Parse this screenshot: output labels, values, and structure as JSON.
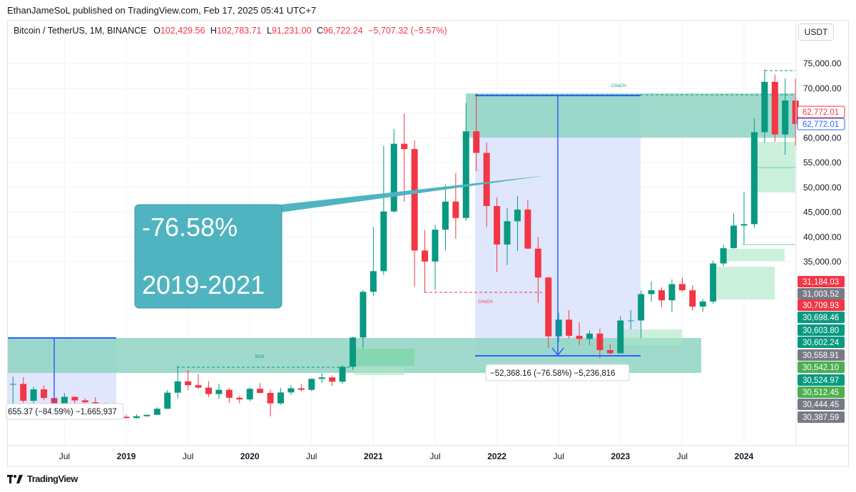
{
  "publisher": "EthanJameSoL published on TradingView.com, Feb 17, 2025 05:41 UTC+7",
  "legend": {
    "symbol": "Bitcoin / TetherUS, 1M, BINANCE",
    "open_label": "O",
    "open": "102,429.56",
    "high_label": "H",
    "high": "102,783.71",
    "low_label": "L",
    "low": "91,231.00",
    "close_label": "C",
    "close": "96,722.24",
    "change": "−5,707.32 (−5.57%)"
  },
  "currency": "USDT",
  "footer": {
    "brand": "TradingView",
    "logo_icon": "tradingview-logo-icon"
  },
  "colors": {
    "up": "#089981",
    "down": "#f23645",
    "zone": "#8fd3c3",
    "box": "#4fb4bf",
    "measure": "#dbe2fb",
    "line": "#2962ff"
  },
  "chart_data": {
    "type": "candlestick",
    "symbol": "Bitcoin / TetherUS",
    "interval": "1M",
    "ylim": [
      0,
      75000
    ],
    "y_ticks": [
      "75,000.00",
      "70,000.00",
      "65,000.00",
      "60,000.00",
      "55,000.00",
      "50,000.00",
      "45,000.00",
      "40,000.00",
      "35,000.00"
    ],
    "x_ticks": [
      "Jul",
      "2019",
      "Jul",
      "2020",
      "Jul",
      "2021",
      "Jul",
      "2022",
      "Jul",
      "2023",
      "Jul",
      "2024"
    ],
    "candles": [
      {
        "t": "2018-02",
        "o": 10290,
        "h": 11790,
        "l": 6000,
        "c": 10330
      },
      {
        "t": "2018-03",
        "o": 10330,
        "h": 11670,
        "l": 6530,
        "c": 6930
      },
      {
        "t": "2018-04",
        "o": 6930,
        "h": 9770,
        "l": 6430,
        "c": 9240
      },
      {
        "t": "2018-05",
        "o": 9240,
        "h": 10020,
        "l": 7030,
        "c": 7490
      },
      {
        "t": "2018-06",
        "o": 7490,
        "h": 7760,
        "l": 5750,
        "c": 6390
      },
      {
        "t": "2018-07",
        "o": 6390,
        "h": 8490,
        "l": 6070,
        "c": 7730
      },
      {
        "t": "2018-08",
        "o": 7730,
        "h": 7740,
        "l": 5880,
        "c": 7020
      },
      {
        "t": "2018-09",
        "o": 7020,
        "h": 7410,
        "l": 6100,
        "c": 6630
      },
      {
        "t": "2018-10",
        "o": 6630,
        "h": 7680,
        "l": 6200,
        "c": 6370
      },
      {
        "t": "2018-11",
        "o": 6370,
        "h": 6560,
        "l": 3650,
        "c": 4040
      },
      {
        "t": "2018-12",
        "o": 4040,
        "h": 4310,
        "l": 3160,
        "c": 3740
      },
      {
        "t": "2019-01",
        "o": 3700,
        "h": 4140,
        "l": 3350,
        "c": 3440
      },
      {
        "t": "2019-02",
        "o": 3440,
        "h": 4200,
        "l": 3370,
        "c": 3810
      },
      {
        "t": "2019-03",
        "o": 3810,
        "h": 4140,
        "l": 3680,
        "c": 4100
      },
      {
        "t": "2019-04",
        "o": 4100,
        "h": 5600,
        "l": 4050,
        "c": 5320
      },
      {
        "t": "2019-05",
        "o": 5320,
        "h": 9100,
        "l": 5260,
        "c": 8570
      },
      {
        "t": "2019-06",
        "o": 8570,
        "h": 13970,
        "l": 7450,
        "c": 10850
      },
      {
        "t": "2019-07",
        "o": 10850,
        "h": 13190,
        "l": 9070,
        "c": 10080
      },
      {
        "t": "2019-08",
        "o": 10080,
        "h": 12330,
        "l": 9320,
        "c": 9590
      },
      {
        "t": "2019-09",
        "o": 9590,
        "h": 10900,
        "l": 7710,
        "c": 8290
      },
      {
        "t": "2019-10",
        "o": 8290,
        "h": 10370,
        "l": 7300,
        "c": 9150
      },
      {
        "t": "2019-11",
        "o": 9150,
        "h": 9510,
        "l": 6520,
        "c": 7540
      },
      {
        "t": "2019-12",
        "o": 7540,
        "h": 7870,
        "l": 6440,
        "c": 7200
      },
      {
        "t": "2020-01",
        "o": 7200,
        "h": 9580,
        "l": 6850,
        "c": 9350
      },
      {
        "t": "2020-02",
        "o": 9350,
        "h": 10500,
        "l": 8450,
        "c": 8520
      },
      {
        "t": "2020-03",
        "o": 8520,
        "h": 9190,
        "l": 3780,
        "c": 6410
      },
      {
        "t": "2020-04",
        "o": 6410,
        "h": 9470,
        "l": 6150,
        "c": 8620
      },
      {
        "t": "2020-05",
        "o": 8620,
        "h": 10070,
        "l": 8100,
        "c": 9450
      },
      {
        "t": "2020-06",
        "o": 9450,
        "h": 10380,
        "l": 8830,
        "c": 9140
      },
      {
        "t": "2020-07",
        "o": 9140,
        "h": 11440,
        "l": 8890,
        "c": 11350
      },
      {
        "t": "2020-08",
        "o": 11350,
        "h": 12470,
        "l": 10520,
        "c": 11650
      },
      {
        "t": "2020-09",
        "o": 11650,
        "h": 12070,
        "l": 9880,
        "c": 10780
      },
      {
        "t": "2020-10",
        "o": 10780,
        "h": 14100,
        "l": 10370,
        "c": 13790
      },
      {
        "t": "2020-11",
        "o": 13790,
        "h": 19860,
        "l": 13200,
        "c": 19700
      },
      {
        "t": "2020-12",
        "o": 19700,
        "h": 29300,
        "l": 17570,
        "c": 28920
      },
      {
        "t": "2021-01",
        "o": 28920,
        "h": 41950,
        "l": 28130,
        "c": 33090
      },
      {
        "t": "2021-02",
        "o": 33090,
        "h": 58350,
        "l": 32300,
        "c": 45140
      },
      {
        "t": "2021-03",
        "o": 45140,
        "h": 61780,
        "l": 44950,
        "c": 58790
      },
      {
        "t": "2021-04",
        "o": 58790,
        "h": 64850,
        "l": 47040,
        "c": 57720
      },
      {
        "t": "2021-05",
        "o": 57720,
        "h": 59500,
        "l": 30000,
        "c": 37250
      },
      {
        "t": "2021-06",
        "o": 37250,
        "h": 41330,
        "l": 28800,
        "c": 35040
      },
      {
        "t": "2021-07",
        "o": 35040,
        "h": 42450,
        "l": 29280,
        "c": 41460
      },
      {
        "t": "2021-08",
        "o": 41460,
        "h": 50500,
        "l": 37330,
        "c": 47130
      },
      {
        "t": "2021-09",
        "o": 47130,
        "h": 52920,
        "l": 39600,
        "c": 43820
      },
      {
        "t": "2021-10",
        "o": 43820,
        "h": 66999,
        "l": 43280,
        "c": 61300
      },
      {
        "t": "2021-11",
        "o": 61300,
        "h": 69000,
        "l": 53250,
        "c": 56950
      },
      {
        "t": "2021-12",
        "o": 56950,
        "h": 59050,
        "l": 42000,
        "c": 46220
      },
      {
        "t": "2022-01",
        "o": 46220,
        "h": 47990,
        "l": 32920,
        "c": 38470
      },
      {
        "t": "2022-02",
        "o": 38470,
        "h": 45820,
        "l": 34320,
        "c": 43160
      },
      {
        "t": "2022-03",
        "o": 43160,
        "h": 48190,
        "l": 37150,
        "c": 45510
      },
      {
        "t": "2022-04",
        "o": 45510,
        "h": 47440,
        "l": 37580,
        "c": 37630
      },
      {
        "t": "2022-05",
        "o": 37630,
        "h": 40020,
        "l": 26700,
        "c": 31800
      },
      {
        "t": "2022-06",
        "o": 31800,
        "h": 31980,
        "l": 17620,
        "c": 19940
      },
      {
        "t": "2022-07",
        "o": 19940,
        "h": 24670,
        "l": 18780,
        "c": 23300
      },
      {
        "t": "2022-08",
        "o": 23300,
        "h": 25210,
        "l": 19520,
        "c": 20050
      },
      {
        "t": "2022-09",
        "o": 20050,
        "h": 22800,
        "l": 18130,
        "c": 19420
      },
      {
        "t": "2022-10",
        "o": 19420,
        "h": 21090,
        "l": 18190,
        "c": 20490
      },
      {
        "t": "2022-11",
        "o": 20490,
        "h": 21480,
        "l": 15480,
        "c": 17160
      },
      {
        "t": "2022-12",
        "o": 17160,
        "h": 18390,
        "l": 16260,
        "c": 16540
      },
      {
        "t": "2023-01",
        "o": 16540,
        "h": 23960,
        "l": 16500,
        "c": 23130
      },
      {
        "t": "2023-02",
        "o": 23130,
        "h": 25250,
        "l": 21350,
        "c": 23140
      },
      {
        "t": "2023-03",
        "o": 23140,
        "h": 29180,
        "l": 19550,
        "c": 28460
      },
      {
        "t": "2023-04",
        "o": 28460,
        "h": 31000,
        "l": 26940,
        "c": 29230
      },
      {
        "t": "2023-05",
        "o": 29230,
        "h": 29820,
        "l": 25810,
        "c": 27210
      },
      {
        "t": "2023-06",
        "o": 27210,
        "h": 31430,
        "l": 24800,
        "c": 30470
      },
      {
        "t": "2023-07",
        "o": 30470,
        "h": 31800,
        "l": 28860,
        "c": 29230
      },
      {
        "t": "2023-08",
        "o": 29230,
        "h": 30250,
        "l": 25170,
        "c": 25940
      },
      {
        "t": "2023-09",
        "o": 25940,
        "h": 27480,
        "l": 24900,
        "c": 26960
      },
      {
        "t": "2023-10",
        "o": 26960,
        "h": 35200,
        "l": 26540,
        "c": 34640
      },
      {
        "t": "2023-11",
        "o": 34640,
        "h": 38430,
        "l": 34090,
        "c": 37720
      },
      {
        "t": "2023-12",
        "o": 37720,
        "h": 44730,
        "l": 37630,
        "c": 42280
      },
      {
        "t": "2024-01",
        "o": 42280,
        "h": 48970,
        "l": 38550,
        "c": 42580
      },
      {
        "t": "2024-02",
        "o": 42580,
        "h": 63900,
        "l": 41880,
        "c": 61130
      },
      {
        "t": "2024-03",
        "o": 61130,
        "h": 73780,
        "l": 59000,
        "c": 71290
      },
      {
        "t": "2024-04",
        "o": 71290,
        "h": 72800,
        "l": 59190,
        "c": 60670
      },
      {
        "t": "2024-05",
        "o": 60670,
        "h": 71980,
        "l": 56550,
        "c": 67520
      },
      {
        "t": "2024-06",
        "o": 67520,
        "h": 71960,
        "l": 58400,
        "c": 62770
      }
    ],
    "price_labels": [
      {
        "text": "62,772.01",
        "style": "red-outline"
      },
      {
        "text": "62,772.01",
        "style": "blue-outline"
      },
      {
        "text": "31,184.03",
        "style": "red"
      },
      {
        "text": "31,003.52",
        "style": "gray"
      },
      {
        "text": "30,709.93",
        "style": "red"
      },
      {
        "text": "30,698.46",
        "style": "green"
      },
      {
        "text": "30,603.80",
        "style": "green"
      },
      {
        "text": "30,602.24",
        "style": "green"
      },
      {
        "text": "30,558.91",
        "style": "gray"
      },
      {
        "text": "30,542.10",
        "style": "lightgreen"
      },
      {
        "text": "30,524.97",
        "style": "green"
      },
      {
        "text": "30,512.45",
        "style": "lightgreen"
      },
      {
        "text": "30,444.45",
        "style": "gray"
      },
      {
        "text": "30,387.59",
        "style": "gray"
      }
    ],
    "annotations": {
      "callout_pct": "-76.58%",
      "callout_years": "2019-2021",
      "choch_top": "CHoCH",
      "choch_mid": "CHoCH",
      "bos": "BOS",
      "measure_main": "−52,368.16 (−76.58%) −5,236,816",
      "measure_left": "655.37 (−84.59%) −1,665,937"
    }
  }
}
